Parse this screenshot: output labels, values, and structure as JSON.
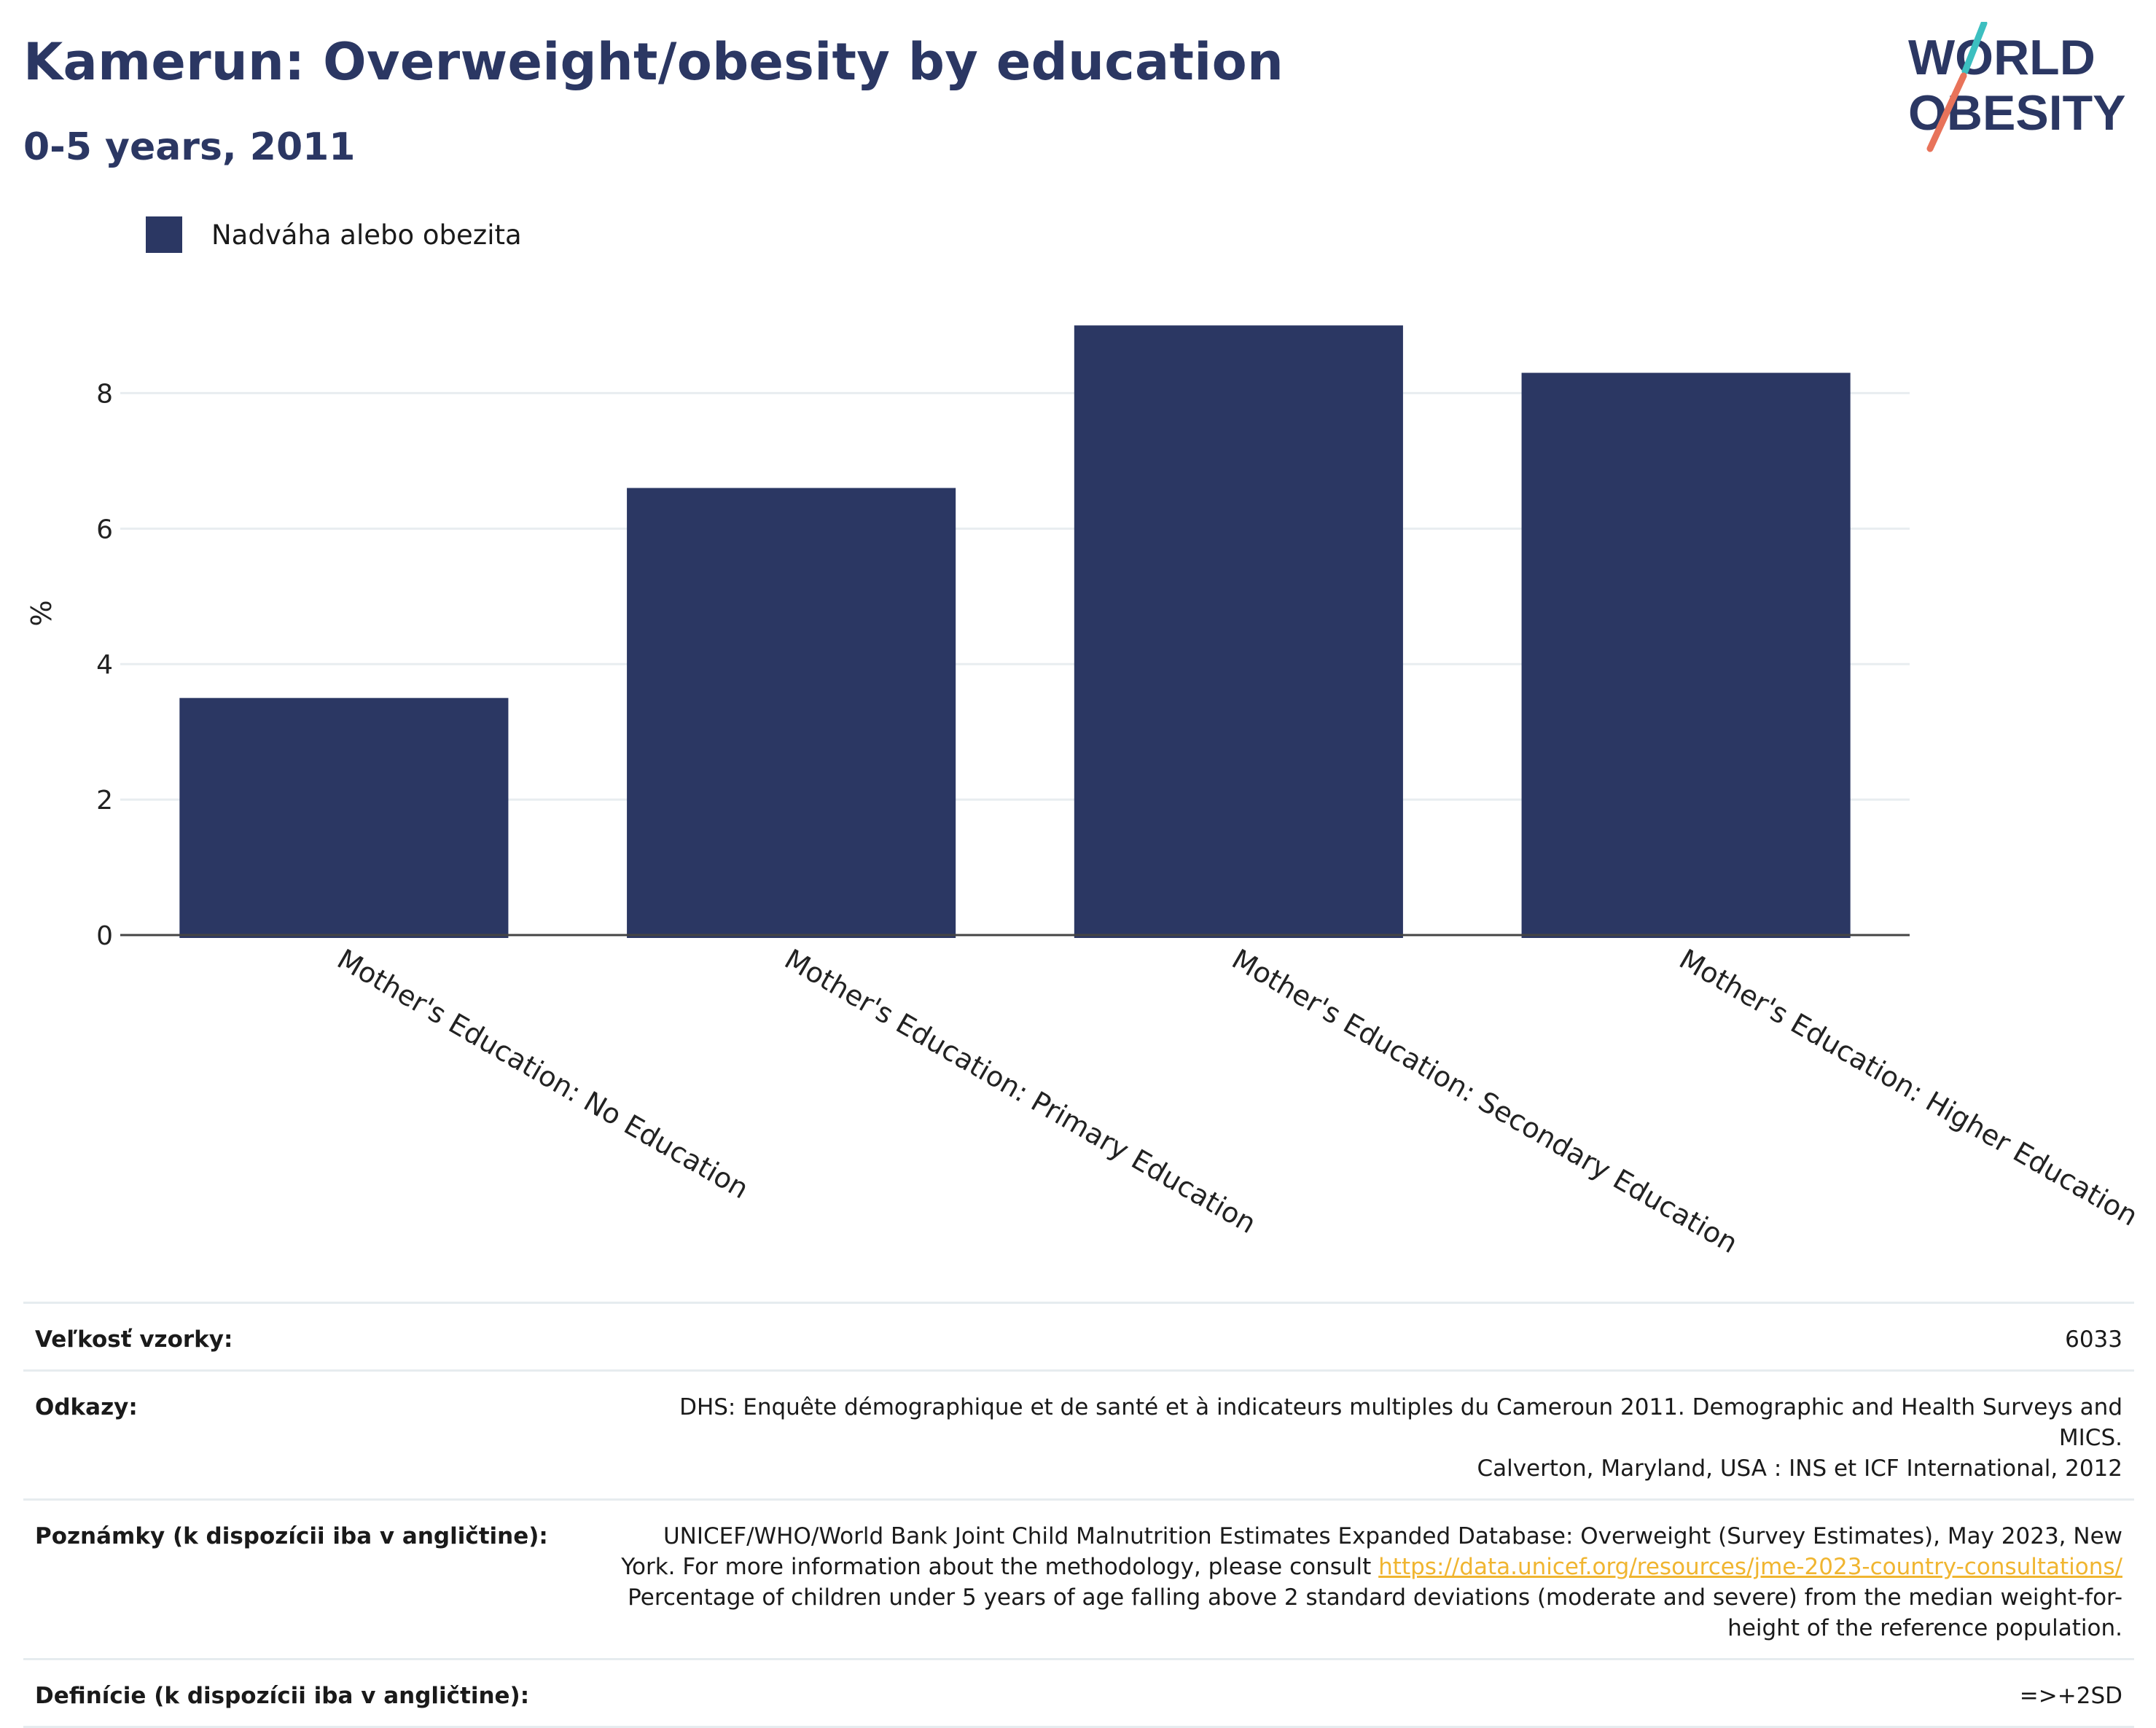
{
  "header": {
    "title": "Kamerun: Overweight/obesity by education",
    "subtitle": "0-5 years, 2011"
  },
  "logo": {
    "line1": "WORLD",
    "line2": "OBESITY"
  },
  "colors": {
    "bar": "#2b3763",
    "title": "#2b3763",
    "link": "#f0b530",
    "logo_slash_teal": "#3cbfc0",
    "logo_slash_coral": "#e8735a"
  },
  "legend": {
    "items": [
      {
        "label": "Nadváha alebo obezita",
        "color": "#2b3763"
      }
    ]
  },
  "chart_data": {
    "type": "bar",
    "categories": [
      "Mother's Education: No Education",
      "Mother's Education: Primary Education",
      "Mother's Education: Secondary Education",
      "Mother's Education: Higher Education"
    ],
    "series": [
      {
        "name": "Nadváha alebo obezita",
        "values": [
          3.5,
          6.6,
          9.0,
          8.3
        ]
      }
    ],
    "ylabel": "%",
    "ylim": [
      0,
      9.5
    ],
    "yticks": [
      0,
      2,
      4,
      6,
      8
    ],
    "grid": true,
    "legend_position": "top-left"
  },
  "info": {
    "sample_size": {
      "label": "Veľkosť vzorky:",
      "value": "6033"
    },
    "references": {
      "label": "Odkazy:",
      "line1": "DHS: Enquête démographique et de santé et à indicateurs multiples du Cameroun 2011. Demographic and Health Surveys and MICS.",
      "line2": "Calverton, Maryland, USA : INS et ICF International, 2012"
    },
    "notes": {
      "label": "Poznámky (k dispozícii iba v angličtine):",
      "line1": "UNICEF/WHO/World Bank Joint Child Malnutrition Estimates Expanded Database: Overweight (Survey Estimates), May 2023, New",
      "line2_prefix": "York. For more information about the methodology, please consult",
      "link": "https://data.unicef.org/resources/jme-2023-country-consultations/",
      "line3": "Percentage of children under 5 years of age falling above 2 standard deviations (moderate and severe) from the median weight-for-",
      "line4": "height of the reference population."
    },
    "definitions": {
      "label": "Definície (k dispozícii iba v angličtine):",
      "value": "=>+2SD"
    }
  }
}
